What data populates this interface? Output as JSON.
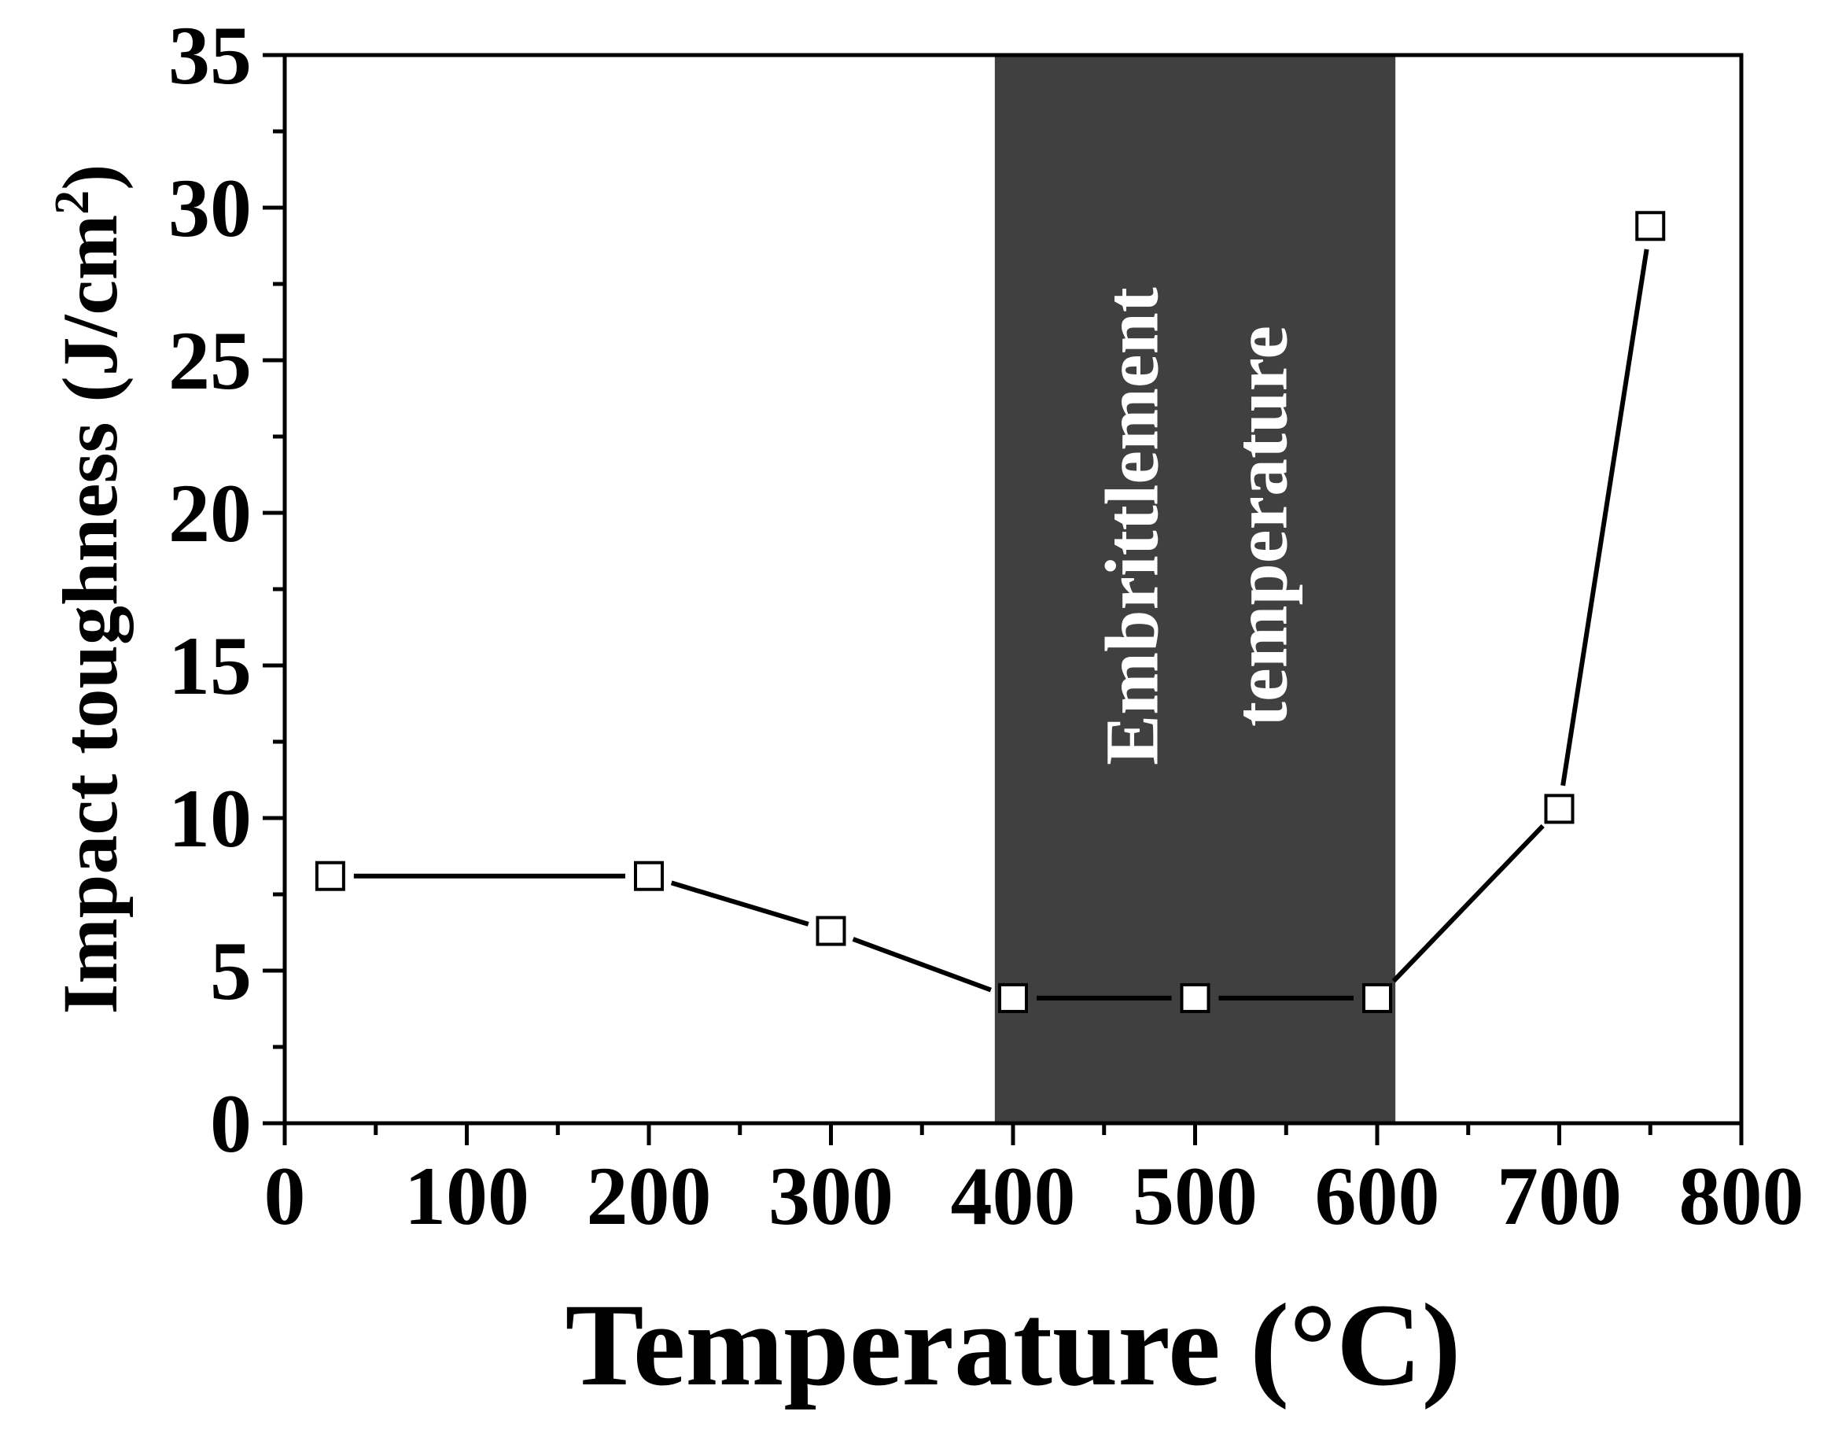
{
  "chart_data": {
    "type": "line",
    "xlabel": "Temperature (°C)",
    "ylabel": "Impact toughness (J/cm",
    "ylabel_superscript": "2",
    "ylabel_suffix": ")",
    "xlim": [
      0,
      800
    ],
    "ylim": [
      0,
      35
    ],
    "x_ticks": [
      "0",
      "100",
      "200",
      "300",
      "400",
      "500",
      "600",
      "700",
      "800"
    ],
    "y_ticks": [
      "0",
      "5",
      "10",
      "15",
      "20",
      "25",
      "30",
      "35"
    ],
    "grid": false,
    "highlight_band": {
      "x_start": 390,
      "x_end": 610,
      "color": "#404040",
      "label_lines": [
        "Embrittlement",
        "temperature"
      ]
    },
    "series": [
      {
        "marker": "open-square",
        "color": "#000000",
        "x": [
          25,
          200,
          300,
          400,
          500,
          600,
          700,
          750
        ],
        "y": [
          8.1,
          8.1,
          6.3,
          4.1,
          4.1,
          4.1,
          10.3,
          29.4
        ]
      }
    ]
  }
}
